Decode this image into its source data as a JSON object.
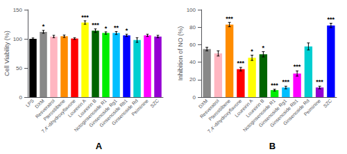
{
  "chart_data": [
    {
      "type": "bar",
      "title": "A",
      "ylabel": "Cell Viability (%)",
      "categories": [
        "LPS",
        "DXM",
        "Resveratrol",
        "Pterostilbene",
        "7,4'-dihydroxyflavone",
        "Loureirin A",
        "Loureirin B",
        "Notoginsenoside R1",
        "Ginsenoside Rg1",
        "Ginsenoside Rb1",
        "Ginsenoside Rd",
        "Peiminine",
        "SZC"
      ],
      "values": [
        100,
        112,
        104,
        104.5,
        100.5,
        128,
        114,
        110,
        110,
        106,
        98,
        106,
        104
      ],
      "errors": [
        1.5,
        2.5,
        2,
        2,
        1.5,
        3,
        3,
        2,
        2.5,
        2,
        4,
        2,
        2
      ],
      "colors": [
        "#000000",
        "#888888",
        "#FFB6C1",
        "#FF8C00",
        "#FF0000",
        "#FFFF00",
        "#006400",
        "#00EE00",
        "#00BFFF",
        "#0000FF",
        "#00CED1",
        "#FF00FF",
        "#9400D3"
      ],
      "ylim": [
        0,
        150
      ],
      "yticks": [
        0,
        50,
        100,
        150
      ],
      "grid": false,
      "annotations": [
        {
          "text": "*",
          "x": "DXM",
          "y": 115.5
        },
        {
          "text": "***",
          "x": "Loureirin A",
          "y": 132
        },
        {
          "text": "***",
          "x": "Loureirin B",
          "y": 118
        },
        {
          "text": "*",
          "x": "Notoginsenoside R1",
          "y": 113
        },
        {
          "text": "**",
          "x": "Ginsenoside Rg1",
          "y": 113.5
        },
        {
          "text": "*",
          "x": "Ginsenoside Rb1",
          "y": 109
        }
      ]
    },
    {
      "type": "bar",
      "title": "B",
      "ylabel": "Inhibition of NO (%)",
      "categories": [
        "DXM",
        "Resveratrol",
        "Pterostilbene",
        "7,4'-dihydroxyflavone",
        "Loureirin A",
        "Loureirin B",
        "Notoginsenoside R1",
        "Ginsenoside Rg1",
        "Ginsenoside Rb1",
        "Ginsenoside Rd",
        "Peiminine",
        "SZC"
      ],
      "values": [
        55,
        50,
        83,
        32,
        45,
        49,
        8,
        11,
        27,
        58,
        11,
        82
      ],
      "errors": [
        2,
        3,
        2.5,
        2,
        3,
        3,
        1,
        1.5,
        3,
        4,
        1.5,
        2.5
      ],
      "colors": [
        "#888888",
        "#FFB6C1",
        "#FF8C00",
        "#FF0000",
        "#FFFF00",
        "#006400",
        "#00EE00",
        "#00BFFF",
        "#FF00FF",
        "#00CED1",
        "#9400D3",
        "#0000FF"
      ],
      "ylim": [
        0,
        100
      ],
      "yticks": [
        0,
        20,
        40,
        60,
        80,
        100
      ],
      "grid": false,
      "annotations": [
        {
          "text": "***",
          "x": "Pterostilbene",
          "y": 86.5
        },
        {
          "text": "***",
          "x": "7,4'-dihydroxyflavone",
          "y": 35
        },
        {
          "text": "*",
          "x": "Loureirin A",
          "y": 49
        },
        {
          "text": "*",
          "x": "Loureirin B",
          "y": 53
        },
        {
          "text": "***",
          "x": "Notoginsenoside R1",
          "y": 10
        },
        {
          "text": "***",
          "x": "Ginsenoside Rg1",
          "y": 13.5
        },
        {
          "text": "***",
          "x": "Ginsenoside Rb1",
          "y": 31
        },
        {
          "text": "***",
          "x": "Peiminine",
          "y": 13.5
        },
        {
          "text": "***",
          "x": "SZC",
          "y": 85.5
        }
      ]
    }
  ]
}
